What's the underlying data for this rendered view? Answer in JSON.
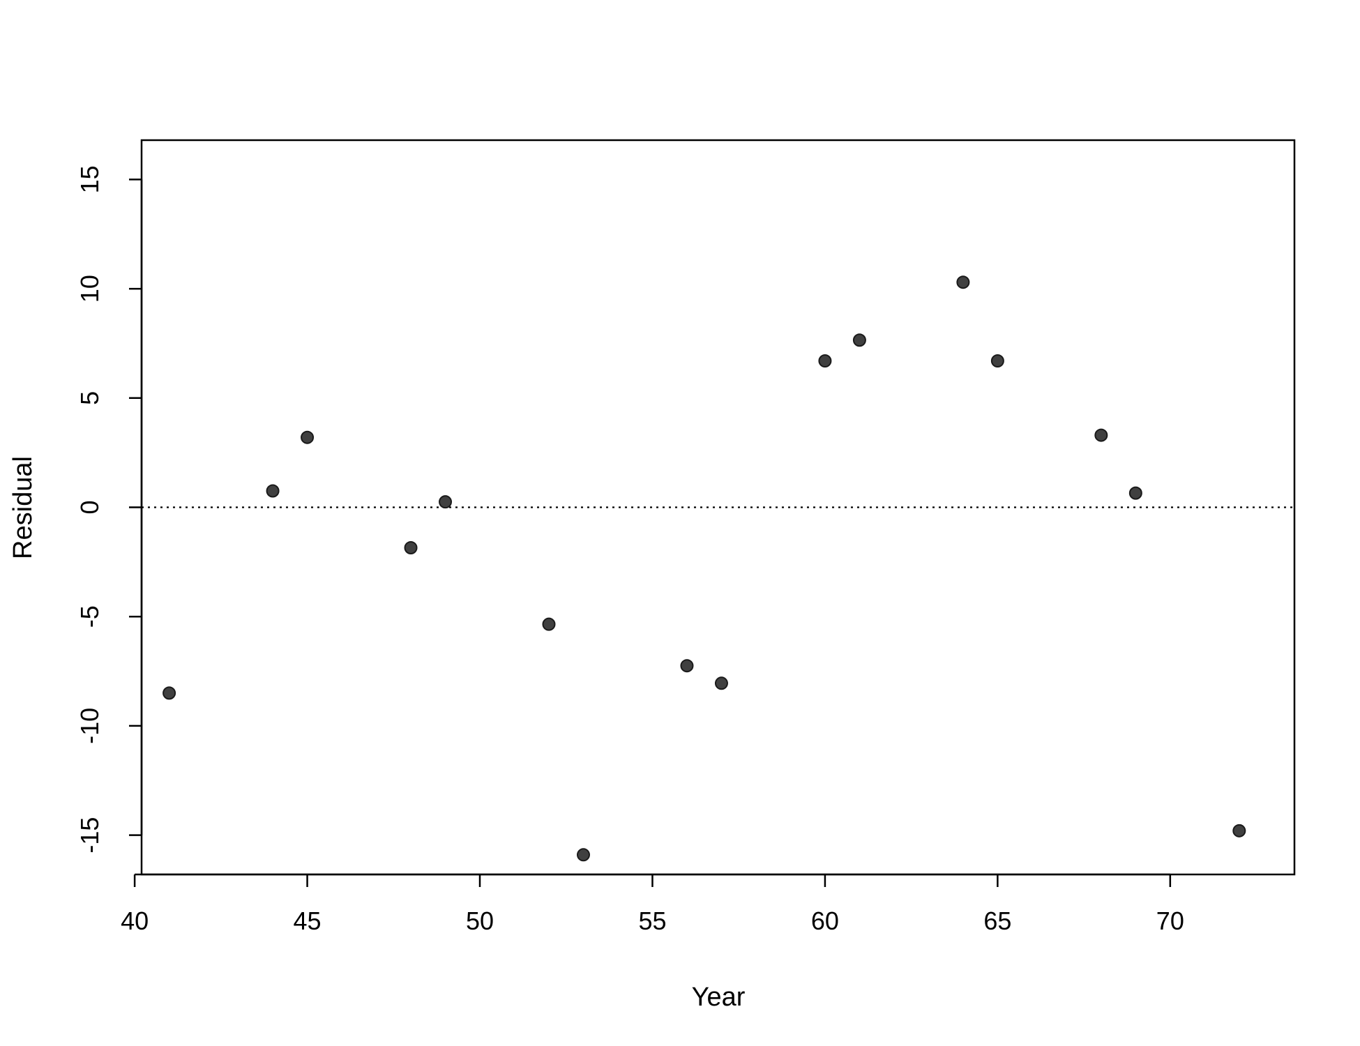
{
  "chart_data": {
    "type": "scatter",
    "title": "",
    "xlabel": "Year",
    "ylabel": "Residual",
    "xlim": [
      40.2,
      73.6
    ],
    "ylim": [
      -16.8,
      16.8
    ],
    "x_ticks": [
      40,
      45,
      50,
      55,
      60,
      65,
      70
    ],
    "y_ticks": [
      -15,
      -10,
      -5,
      0,
      5,
      10,
      15
    ],
    "grid": false,
    "legend": "none",
    "reference_line": {
      "y": 0,
      "style": "dotted"
    },
    "point_color": "#404040",
    "series": [
      {
        "x": [
          41,
          44,
          45,
          48,
          49,
          52,
          53,
          56,
          57,
          60,
          61,
          64,
          65,
          68,
          69,
          72
        ],
        "y": [
          -8.5,
          0.75,
          3.2,
          -1.85,
          0.25,
          -5.35,
          -15.9,
          -7.25,
          -8.05,
          6.7,
          7.65,
          10.3,
          6.7,
          3.3,
          0.65,
          -14.8
        ]
      }
    ]
  }
}
